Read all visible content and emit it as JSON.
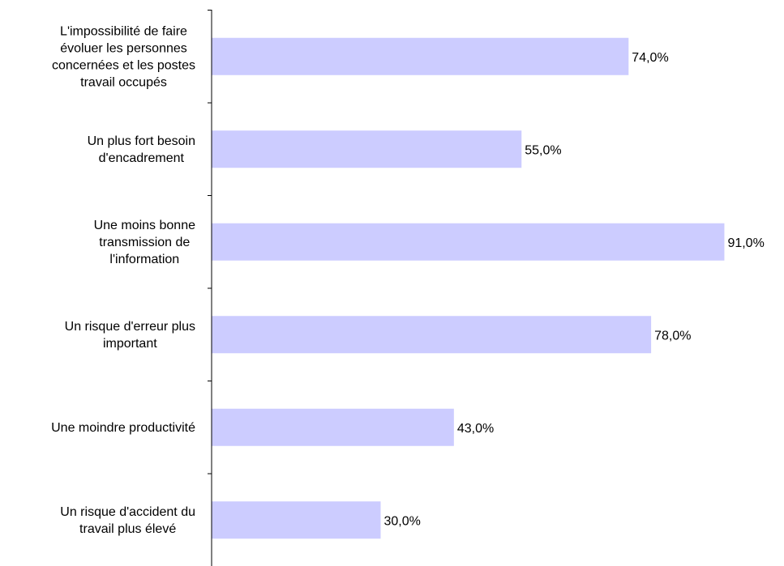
{
  "chart_data": {
    "type": "bar",
    "orientation": "horizontal",
    "title": "",
    "xlabel": "",
    "ylabel": "",
    "categories": [
      "L'impossibilité de faire évoluer les personnes concernées et les postes travail occupés",
      "Un plus fort besoin d'encadrement",
      "Une moins bonne transmission de l'information",
      "Un risque d'erreur plus important",
      "Une moindre productivité",
      "Un risque d'accident du travail plus élevé"
    ],
    "category_lines": [
      [
        "L'impossibilité de faire",
        "évoluer les personnes",
        "concernées et les postes",
        "travail occupés"
      ],
      [
        "Un plus fort besoin",
        "d'encadrement"
      ],
      [
        "Une moins bonne",
        "transmission de",
        "l'information"
      ],
      [
        "Un risque d'erreur plus",
        "important"
      ],
      [
        "Une moindre productivité"
      ],
      [
        "Un risque d'accident du",
        "travail plus élevé"
      ]
    ],
    "values": [
      74,
      55,
      91,
      78,
      43,
      30
    ],
    "value_labels": [
      "74,0%",
      "55,0%",
      "91,0%",
      "78,0%",
      "43,0%",
      "30,0%"
    ],
    "unit": "%",
    "xlim": [
      0,
      100
    ],
    "grid": false,
    "legend": "none",
    "bar_color": "#ccccff",
    "axis_color": "#000000"
  }
}
